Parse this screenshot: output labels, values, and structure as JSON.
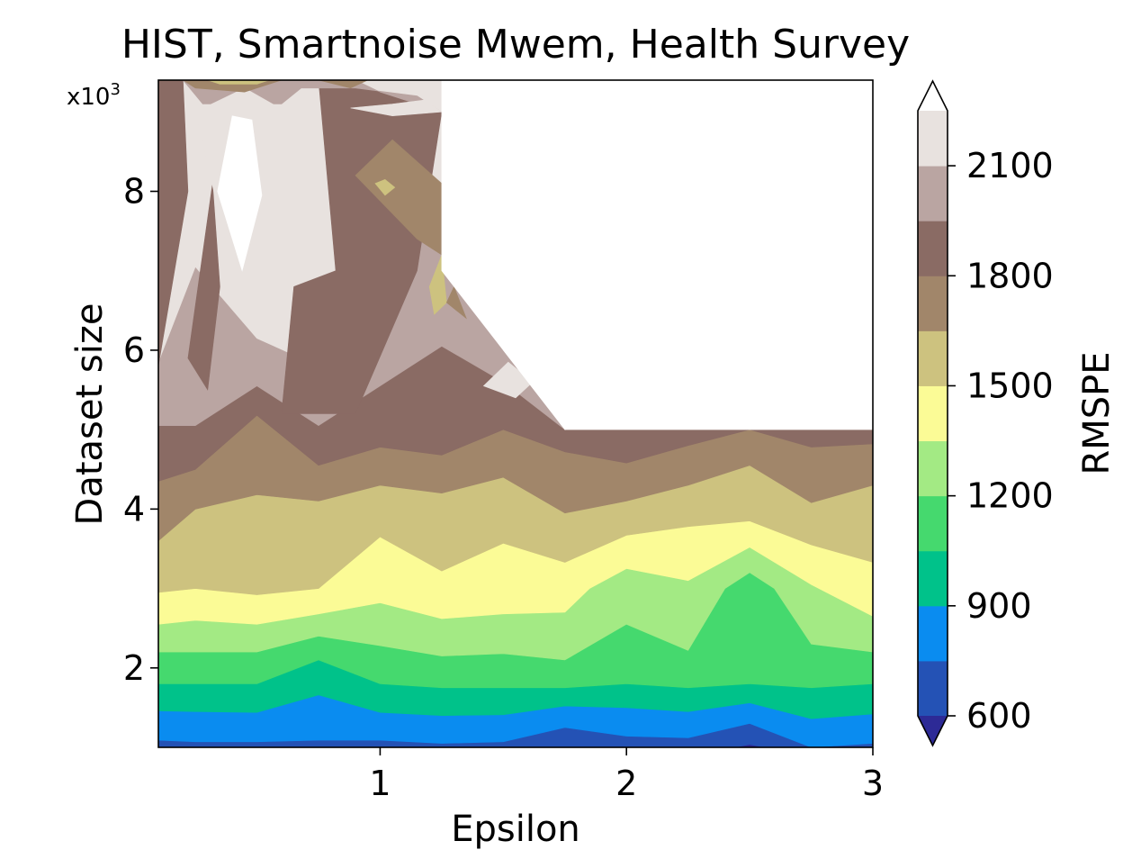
{
  "chart_data": {
    "type": "contour",
    "title": "HIST, Smartnoise Mwem, Health Survey",
    "xlabel": "Epsilon",
    "ylabel": "Dataset size",
    "y_multiplier_label": "x10",
    "y_multiplier_exp": "3",
    "xlim": [
      0.1,
      3.0
    ],
    "ylim": [
      1.0,
      9.4
    ],
    "x_ticks": [
      {
        "value": 1,
        "label": "1"
      },
      {
        "value": 2,
        "label": "2"
      },
      {
        "value": 3,
        "label": "3"
      }
    ],
    "y_ticks": [
      {
        "value": 2,
        "label": "2"
      },
      {
        "value": 4,
        "label": "4"
      },
      {
        "value": 6,
        "label": "6"
      },
      {
        "value": 8,
        "label": "8"
      }
    ],
    "colorbar": {
      "label": "RMSPE",
      "levels": [
        600,
        750,
        900,
        1050,
        1200,
        1350,
        1500,
        1650,
        1800,
        1950,
        2100,
        2250
      ],
      "colors": [
        "#2452b5",
        "#0a8cf0",
        "#00c28a",
        "#45d96e",
        "#a3ea84",
        "#fbfb96",
        "#cdc27f",
        "#a1866a",
        "#8a6b64",
        "#baa5a2",
        "#e8e2df"
      ],
      "under_color": "#2d2a96",
      "over_color": "#ffffff",
      "ticks": [
        {
          "value": 600,
          "label": "600"
        },
        {
          "value": 900,
          "label": "900"
        },
        {
          "value": 1200,
          "label": "1200"
        },
        {
          "value": 1500,
          "label": "1500"
        },
        {
          "value": 1800,
          "label": "1800"
        },
        {
          "value": 2100,
          "label": "2100"
        }
      ]
    },
    "bands": [
      {
        "level": 750,
        "color": "#0a8cf0",
        "boundary": [
          [
            0.1,
            1.09
          ],
          [
            0.25,
            1.07
          ],
          [
            0.5,
            1.07
          ],
          [
            0.75,
            1.09
          ],
          [
            1.0,
            1.09
          ],
          [
            1.25,
            1.05
          ],
          [
            1.5,
            1.07
          ],
          [
            1.75,
            1.25
          ],
          [
            2.0,
            1.14
          ],
          [
            2.25,
            1.12
          ],
          [
            2.5,
            1.3
          ],
          [
            2.75,
            1.0
          ],
          [
            3.0,
            1.05
          ]
        ]
      },
      {
        "level": 900,
        "color": "#00c28a",
        "boundary": [
          [
            0.1,
            1.46
          ],
          [
            0.25,
            1.45
          ],
          [
            0.5,
            1.44
          ],
          [
            0.75,
            1.66
          ],
          [
            1.0,
            1.44
          ],
          [
            1.25,
            1.4
          ],
          [
            1.5,
            1.41
          ],
          [
            1.75,
            1.52
          ],
          [
            2.0,
            1.5
          ],
          [
            2.25,
            1.45
          ],
          [
            2.5,
            1.56
          ],
          [
            2.75,
            1.36
          ],
          [
            3.0,
            1.42
          ]
        ]
      },
      {
        "level": 1050,
        "color": "#45d96e",
        "boundary": [
          [
            0.1,
            1.8
          ],
          [
            0.25,
            1.8
          ],
          [
            0.5,
            1.8
          ],
          [
            0.75,
            2.1
          ],
          [
            1.0,
            1.8
          ],
          [
            1.25,
            1.75
          ],
          [
            1.5,
            1.75
          ],
          [
            1.75,
            1.75
          ],
          [
            2.0,
            1.8
          ],
          [
            2.25,
            1.75
          ],
          [
            2.5,
            1.8
          ],
          [
            2.75,
            1.75
          ],
          [
            3.0,
            1.8
          ]
        ]
      },
      {
        "level": 1200,
        "color": "#a3ea84",
        "boundary": [
          [
            0.1,
            2.2
          ],
          [
            0.25,
            2.2
          ],
          [
            0.5,
            2.2
          ],
          [
            0.75,
            2.4
          ],
          [
            1.0,
            2.28
          ],
          [
            1.25,
            2.15
          ],
          [
            1.5,
            2.18
          ],
          [
            1.75,
            2.1
          ],
          [
            2.0,
            2.55
          ],
          [
            2.25,
            2.22
          ],
          [
            2.4,
            3.0
          ],
          [
            2.5,
            3.2
          ],
          [
            2.6,
            3.0
          ],
          [
            2.75,
            2.3
          ],
          [
            3.0,
            2.2
          ]
        ]
      },
      {
        "level": 1350,
        "color": "#fbfb96",
        "boundary": [
          [
            0.1,
            2.55
          ],
          [
            0.25,
            2.6
          ],
          [
            0.5,
            2.55
          ],
          [
            0.75,
            2.68
          ],
          [
            1.0,
            2.82
          ],
          [
            1.25,
            2.62
          ],
          [
            1.5,
            2.68
          ],
          [
            1.75,
            2.7
          ],
          [
            1.85,
            3.0
          ],
          [
            2.0,
            3.25
          ],
          [
            2.25,
            3.1
          ],
          [
            2.5,
            3.52
          ],
          [
            2.75,
            3.05
          ],
          [
            3.0,
            2.65
          ]
        ]
      },
      {
        "level": 1500,
        "color": "#cdc27f",
        "boundary": [
          [
            0.1,
            2.95
          ],
          [
            0.25,
            3.0
          ],
          [
            0.5,
            2.92
          ],
          [
            0.75,
            3.0
          ],
          [
            1.0,
            3.65
          ],
          [
            1.25,
            3.22
          ],
          [
            1.5,
            3.57
          ],
          [
            1.75,
            3.33
          ],
          [
            2.0,
            3.67
          ],
          [
            2.25,
            3.78
          ],
          [
            2.5,
            3.85
          ],
          [
            2.75,
            3.55
          ],
          [
            3.0,
            3.33
          ]
        ]
      },
      {
        "level": 1650,
        "color": "#a1866a",
        "boundary": [
          [
            0.1,
            3.6
          ],
          [
            0.25,
            4.0
          ],
          [
            0.5,
            4.18
          ],
          [
            0.75,
            4.1
          ],
          [
            1.0,
            4.3
          ],
          [
            1.25,
            4.2
          ],
          [
            1.5,
            4.4
          ],
          [
            1.75,
            3.95
          ],
          [
            2.0,
            4.1
          ],
          [
            2.25,
            4.3
          ],
          [
            2.5,
            4.55
          ],
          [
            2.75,
            4.08
          ],
          [
            3.0,
            4.3
          ]
        ]
      },
      {
        "level": 1800,
        "color": "#8a6b64",
        "boundary": [
          [
            0.1,
            4.35
          ],
          [
            0.25,
            4.5
          ],
          [
            0.5,
            5.18
          ],
          [
            0.75,
            4.55
          ],
          [
            1.0,
            4.78
          ],
          [
            1.25,
            4.68
          ],
          [
            1.5,
            5.0
          ],
          [
            1.75,
            4.72
          ],
          [
            2.0,
            4.58
          ],
          [
            2.25,
            4.8
          ],
          [
            2.5,
            5.0
          ],
          [
            2.75,
            4.78
          ],
          [
            3.0,
            4.82
          ]
        ]
      },
      {
        "level": 1950,
        "color": "#baa5a2",
        "boundary": [
          [
            0.1,
            5.05
          ],
          [
            0.25,
            5.05
          ],
          [
            0.5,
            5.55
          ],
          [
            0.75,
            5.05
          ],
          [
            1.0,
            5.55
          ],
          [
            1.25,
            6.05
          ],
          [
            1.5,
            5.6
          ],
          [
            1.75,
            5.0
          ]
        ]
      },
      {
        "level": 2100,
        "color": "#e8e2df",
        "boundary": [
          [
            0.1,
            5.85
          ],
          [
            0.25,
            7.05
          ],
          [
            0.5,
            6.15
          ],
          [
            0.75,
            5.8
          ],
          [
            1.0,
            6.55
          ],
          [
            1.25,
            7.85
          ],
          [
            1.5,
            6.0
          ],
          [
            1.75,
            5.0
          ]
        ]
      }
    ],
    "feature_patches": [
      {
        "color": "#8a6b64",
        "points": [
          [
            0.1,
            5.8
          ],
          [
            0.22,
            8.0
          ],
          [
            0.2,
            9.4
          ],
          [
            0.1,
            9.4
          ]
        ]
      },
      {
        "color": "#8a6b64",
        "points": [
          [
            0.22,
            5.9
          ],
          [
            0.32,
            8.1
          ],
          [
            0.35,
            6.8
          ],
          [
            0.3,
            5.5
          ]
        ]
      },
      {
        "color": "#8a6b64",
        "points": [
          [
            0.6,
            5.2
          ],
          [
            0.9,
            5.2
          ],
          [
            1.15,
            7.0
          ],
          [
            1.25,
            9.0
          ],
          [
            0.95,
            9.3
          ],
          [
            0.75,
            9.4
          ],
          [
            0.82,
            7.0
          ],
          [
            0.65,
            6.8
          ]
        ]
      },
      {
        "color": "#a1866a",
        "points": [
          [
            0.9,
            8.2
          ],
          [
            1.05,
            8.65
          ],
          [
            1.25,
            8.1
          ],
          [
            1.25,
            7.2
          ],
          [
            1.15,
            7.4
          ]
        ]
      },
      {
        "color": "#cdc27f",
        "points": [
          [
            0.98,
            8.1
          ],
          [
            1.02,
            7.95
          ],
          [
            1.06,
            8.05
          ],
          [
            1.02,
            8.15
          ]
        ]
      },
      {
        "color": "#cdc27f",
        "points": [
          [
            1.2,
            6.8
          ],
          [
            1.25,
            7.2
          ],
          [
            1.27,
            6.6
          ],
          [
            1.22,
            6.45
          ]
        ]
      },
      {
        "color": "#a1866a",
        "points": [
          [
            1.27,
            6.6
          ],
          [
            1.35,
            6.4
          ],
          [
            1.3,
            6.8
          ]
        ]
      },
      {
        "color": "#baa5a2",
        "points": [
          [
            0.2,
            9.4
          ],
          [
            0.28,
            9.1
          ],
          [
            0.6,
            9.1
          ],
          [
            0.68,
            9.3
          ],
          [
            0.9,
            9.3
          ],
          [
            1.15,
            9.2
          ],
          [
            1.25,
            9.0
          ],
          [
            1.0,
            9.25
          ],
          [
            0.9,
            9.4
          ]
        ]
      },
      {
        "color": "#e8e2df",
        "points": [
          [
            0.25,
            9.0
          ],
          [
            0.4,
            7.0
          ],
          [
            0.55,
            8.0
          ],
          [
            0.62,
            9.0
          ],
          [
            0.45,
            9.3
          ]
        ]
      },
      {
        "color": "#ffffff",
        "points": [
          [
            0.34,
            8.0
          ],
          [
            0.4,
            8.95
          ],
          [
            0.48,
            8.9
          ],
          [
            0.52,
            7.95
          ],
          [
            0.44,
            7.0
          ]
        ]
      },
      {
        "color": "#a1866a",
        "points": [
          [
            0.2,
            9.4
          ],
          [
            0.25,
            9.3
          ],
          [
            0.45,
            9.25
          ],
          [
            0.6,
            9.4
          ]
        ]
      },
      {
        "color": "#cdc27f",
        "points": [
          [
            0.3,
            9.4
          ],
          [
            0.35,
            9.35
          ],
          [
            0.5,
            9.35
          ],
          [
            0.55,
            9.4
          ]
        ]
      },
      {
        "color": "#a1866a",
        "points": [
          [
            0.75,
            9.4
          ],
          [
            0.88,
            9.3
          ],
          [
            0.95,
            9.4
          ]
        ]
      },
      {
        "color": "#e8e2df",
        "points": [
          [
            0.88,
            9.05
          ],
          [
            1.05,
            9.1
          ],
          [
            1.18,
            9.15
          ],
          [
            1.25,
            9.0
          ],
          [
            1.05,
            8.95
          ]
        ]
      },
      {
        "color": "#e8e2df",
        "points": [
          [
            1.42,
            5.55
          ],
          [
            1.52,
            5.85
          ],
          [
            1.62,
            5.6
          ],
          [
            1.55,
            5.4
          ]
        ]
      },
      {
        "color": "#ffffff",
        "points": [
          [
            1.25,
            9.4
          ],
          [
            1.25,
            7.0
          ],
          [
            1.75,
            5.0
          ],
          [
            3.0,
            5.0
          ],
          [
            3.0,
            9.4
          ]
        ]
      },
      {
        "color": "#2d2a96",
        "points": [
          [
            2.45,
            1.0
          ],
          [
            2.5,
            1.03
          ],
          [
            2.55,
            1.0
          ]
        ]
      }
    ]
  }
}
